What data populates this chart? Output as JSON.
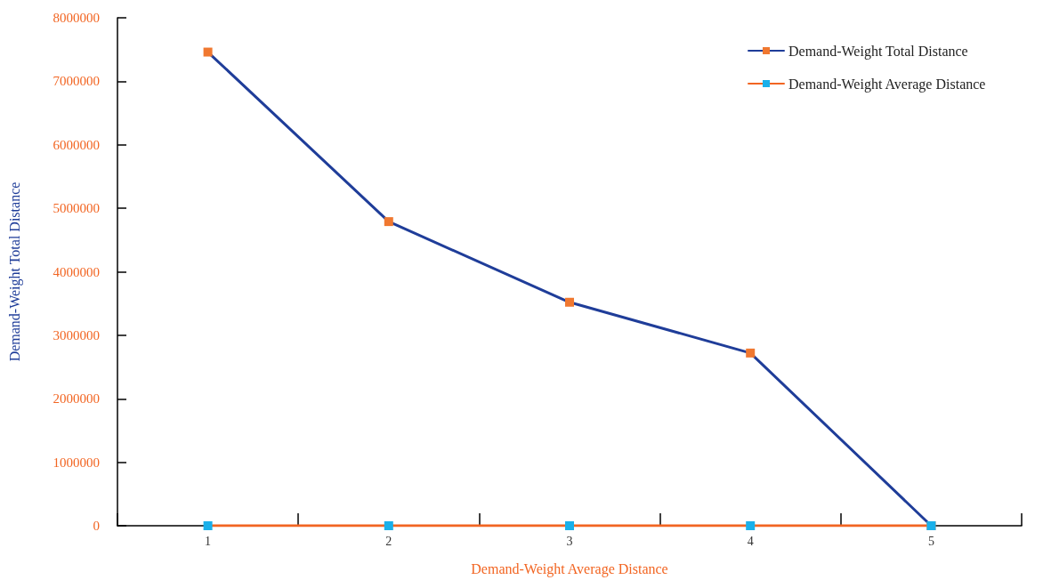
{
  "chart_data": {
    "type": "line",
    "xlabel": "Demand-Weight Average Distance",
    "ylabel": "Demand-Weight Total Distance",
    "categories": [
      "1",
      "2",
      "3",
      "4",
      "5"
    ],
    "series": [
      {
        "name": "Demand-Weight Total Distance",
        "color": "#1f3d99",
        "colors": [
          "#f07830",
          "#f07830",
          "#f07830",
          "#f07830",
          "#f07830"
        ],
        "values": [
          7460000,
          4790000,
          3520000,
          2720000,
          0
        ]
      },
      {
        "name": "Demand-Weight Average Distance",
        "color": "#f26522",
        "colors": [
          "#1ab0ea",
          "#1ab0ea",
          "#1ab0ea",
          "#1ab0ea",
          "#1ab0ea"
        ],
        "values": [
          0,
          0,
          0,
          0,
          0
        ]
      }
    ],
    "ylim": [
      0,
      8000000
    ],
    "yticks": [
      0,
      1000000,
      2000000,
      3000000,
      4000000,
      5000000,
      6000000,
      7000000,
      8000000
    ],
    "grid": false,
    "legend": "top right",
    "marker": "square",
    "line_style": "solid"
  }
}
